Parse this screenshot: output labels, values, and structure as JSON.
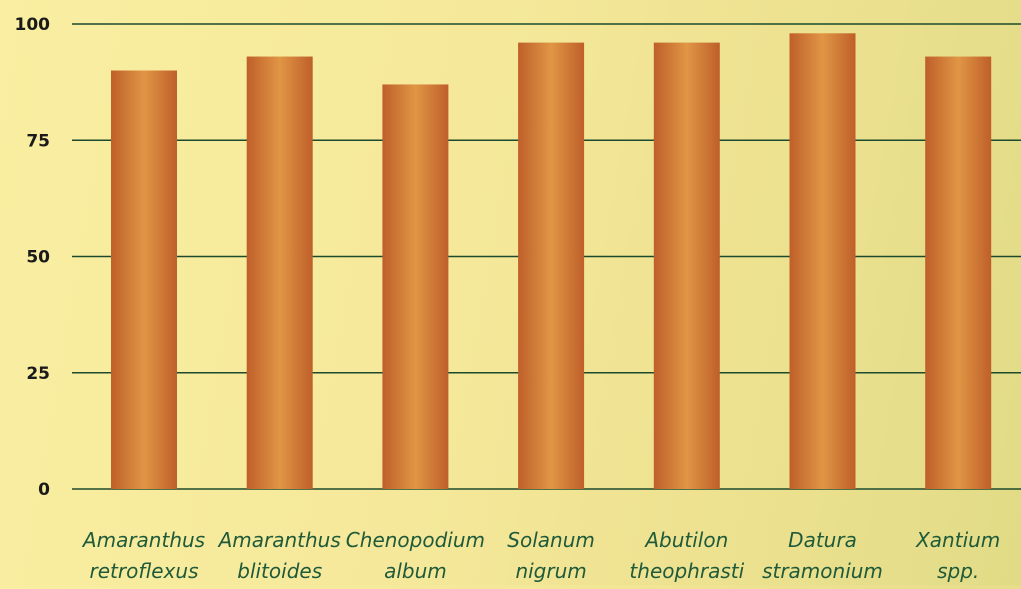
{
  "chart_data": {
    "type": "bar",
    "title": "",
    "xlabel": "",
    "ylabel": "",
    "categories": [
      [
        "Amaranthus",
        "retroflexus"
      ],
      [
        "Amaranthus",
        "blitoides"
      ],
      [
        "Chenopodium",
        "album"
      ],
      [
        "Solanum",
        "nigrum"
      ],
      [
        "Abutilon",
        "theophrasti"
      ],
      [
        "Datura",
        "stramonium"
      ],
      [
        "Xantium",
        "spp."
      ]
    ],
    "values": [
      90,
      93,
      87,
      96,
      96,
      98,
      93
    ],
    "ylim": [
      0,
      100
    ],
    "yticks": [
      0,
      25,
      50,
      75,
      100
    ],
    "grid": true,
    "legend": "none",
    "colors": {
      "bar_light": "#e09645",
      "bar_dark": "#bf5f2a",
      "grid": "#1d4a2c",
      "tick_text": "#1a1a1a",
      "category_text": "#1f5a3a"
    }
  }
}
